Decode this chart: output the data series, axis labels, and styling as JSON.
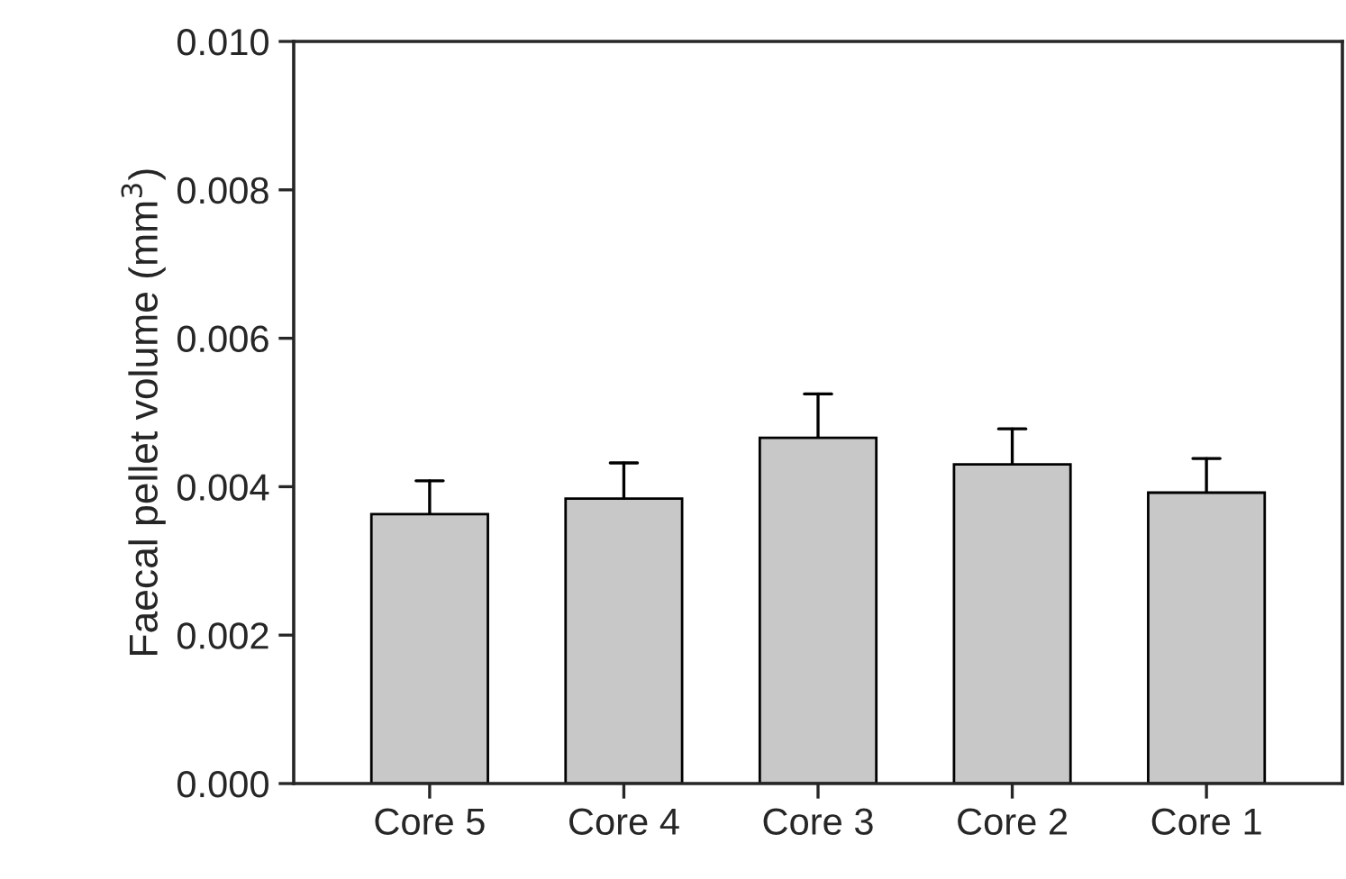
{
  "chart_data": {
    "type": "bar",
    "ylabel": "Faecal pellet volume (mm$^{3}$)",
    "categories": [
      "Core 5",
      "Core 4",
      "Core 3",
      "Core 2",
      "Core 1"
    ],
    "values": [
      0.00363,
      0.00384,
      0.00466,
      0.0043,
      0.00392
    ],
    "errors": [
      [
        0.00363,
        0.00408
      ],
      [
        0.00384,
        0.00432
      ],
      [
        0.00466,
        0.00525
      ],
      [
        0.0043,
        0.00478
      ],
      [
        0.00392,
        0.00438
      ]
    ],
    "color": "#c8c8c8",
    "ylim": [
      0,
      0.01
    ],
    "yticks": [
      {
        "value": 0,
        "label": "0.000"
      },
      {
        "value": 0.002,
        "label": "0.002"
      },
      {
        "value": 0.004,
        "label": "0.004"
      },
      {
        "value": 0.006,
        "label": "0.006"
      },
      {
        "value": 0.008,
        "label": "0.008"
      },
      {
        "value": 0.01,
        "label": "0.010"
      }
    ],
    "grid": false,
    "legend": false
  }
}
